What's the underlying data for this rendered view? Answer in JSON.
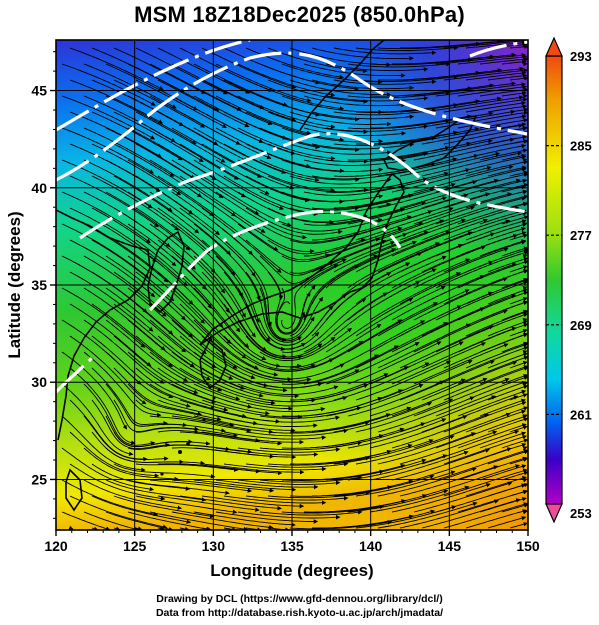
{
  "title": "MSM 18Z18Dec2025 (850.0hPa)",
  "credits": {
    "line1": "Drawing by DCL (https://www.gfd-dennou.org/library/dcl/)",
    "line2": "Data from http://database.rish.kyoto-u.ac.jp/arch/jmadata/"
  },
  "map": {
    "xlabel": "Longitude (degrees)",
    "ylabel": "Latitude  (degrees)",
    "lon_range": [
      120,
      150
    ],
    "lat_range": [
      22.4,
      47.6
    ],
    "lon_ticks": [
      "120",
      "125",
      "130",
      "135",
      "140",
      "145",
      "150"
    ],
    "lat_ticks": [
      "25",
      "30",
      "35",
      "40",
      "45"
    ],
    "grid": true,
    "field": "temperature (K)",
    "cyclone_centers": [
      {
        "lon": 134.5,
        "lat": 32.5
      },
      {
        "lon": 124.5,
        "lat": 27.0
      }
    ]
  },
  "colorbar": {
    "range": [
      253,
      293
    ],
    "labels": [
      "293",
      "285",
      "277",
      "269",
      "261",
      "253"
    ],
    "colors": [
      "#f0447c",
      "#9b00c8",
      "#3a00c8",
      "#0060f0",
      "#00c8e8",
      "#10d87a",
      "#30c830",
      "#98e010",
      "#f0f000",
      "#f0a000",
      "#f05010"
    ]
  }
}
